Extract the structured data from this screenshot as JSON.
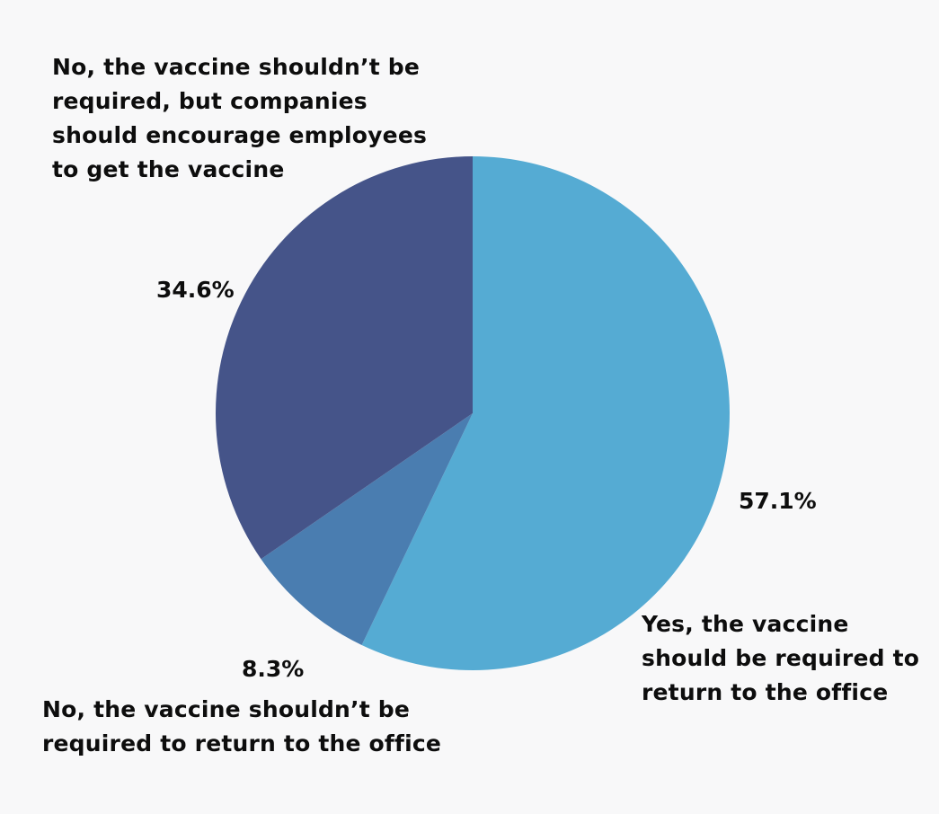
{
  "chart_data": {
    "type": "pie",
    "title": "",
    "start_angle_deg": 0,
    "direction": "clockwise",
    "slices": [
      {
        "label_lines": [
          "Yes, the vaccine",
          "should be required to",
          "return to the office"
        ],
        "value": 57.1,
        "value_label": "57.1%",
        "color": "#55abd3"
      },
      {
        "label_lines": [
          "No, the vaccine shouldn’t be",
          "required to return to the office"
        ],
        "value": 8.3,
        "value_label": "8.3%",
        "color": "#4a7db0"
      },
      {
        "label_lines": [
          "No, the vaccine shouldn’t be",
          "required, but companies",
          "should encourage employees",
          "to get the vaccine"
        ],
        "value": 34.6,
        "value_label": "34.6%",
        "color": "#455489"
      }
    ]
  }
}
